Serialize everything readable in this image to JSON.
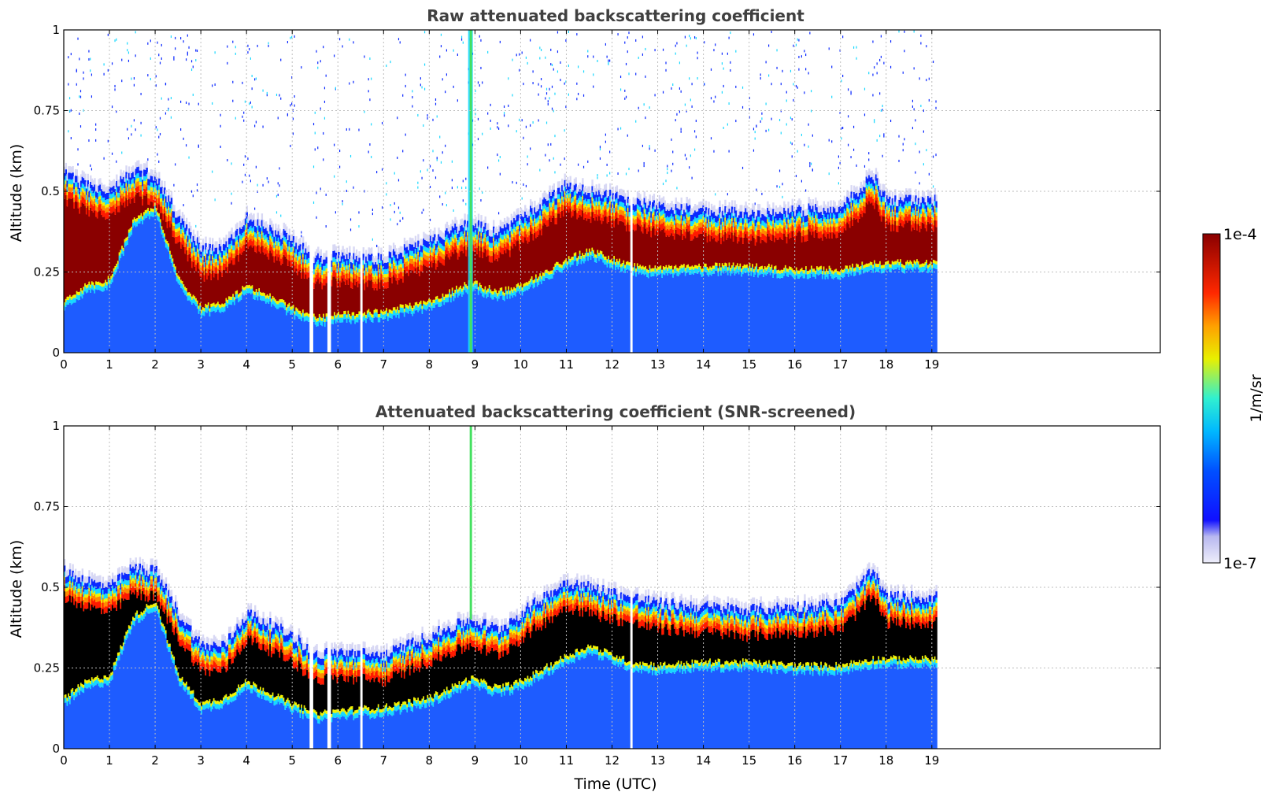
{
  "figure": {
    "colorbar": {
      "label": "1/m/sr",
      "max_label": "1e-4",
      "min_label": "1e-7",
      "scale": "log",
      "colormap": "jet-like (pale lavender → blue → cyan → yellow → red → dark red)"
    },
    "xlabel": "Time (UTC)"
  },
  "chart_data": [
    {
      "type": "heatmap",
      "title": "Raw attenuated backscattering coefficient",
      "xlabel": "",
      "ylabel": "Altitude (km)",
      "xlim": [
        0,
        24
      ],
      "ylim": [
        0,
        1
      ],
      "xticks": [
        "0",
        "1",
        "2",
        "3",
        "4",
        "5",
        "6",
        "7",
        "8",
        "9",
        "10",
        "11",
        "12",
        "13",
        "14",
        "15",
        "16",
        "17",
        "18",
        "19"
      ],
      "yticks": [
        "0",
        "0.25",
        "0.5",
        "0.75",
        "1"
      ],
      "ytick_values": [
        0,
        0.25,
        0.5,
        0.75,
        1
      ],
      "data_end_time": 19.1,
      "grid": true,
      "approx_layer": {
        "time": [
          0,
          0.5,
          1,
          1.5,
          2,
          2.5,
          3,
          3.5,
          4,
          5,
          5.5,
          6,
          7,
          8,
          8.9,
          9.5,
          10,
          11,
          11.5,
          12.4,
          13,
          14,
          15,
          16,
          17,
          17.7,
          18,
          19.1
        ],
        "top": [
          0.55,
          0.52,
          0.5,
          0.56,
          0.55,
          0.42,
          0.32,
          0.32,
          0.42,
          0.35,
          0.29,
          0.3,
          0.29,
          0.35,
          0.4,
          0.37,
          0.42,
          0.52,
          0.5,
          0.47,
          0.45,
          0.44,
          0.43,
          0.44,
          0.45,
          0.55,
          0.47,
          0.47
        ],
        "bottom": [
          0.15,
          0.2,
          0.22,
          0.4,
          0.45,
          0.22,
          0.13,
          0.15,
          0.2,
          0.13,
          0.1,
          0.11,
          0.12,
          0.15,
          0.21,
          0.18,
          0.2,
          0.28,
          0.31,
          0.26,
          0.25,
          0.26,
          0.26,
          0.25,
          0.25,
          0.27,
          0.27,
          0.27
        ]
      },
      "gaps_time": [
        5.4,
        5.8,
        6.5,
        12.4
      ]
    },
    {
      "type": "heatmap",
      "title": "Attenuated backscattering coefficient (SNR-screened)",
      "xlabel": "Time (UTC)",
      "ylabel": "Altitude (km)",
      "xlim": [
        0,
        24
      ],
      "ylim": [
        0,
        1
      ],
      "xticks": [
        "0",
        "1",
        "2",
        "3",
        "4",
        "5",
        "6",
        "7",
        "8",
        "9",
        "10",
        "11",
        "12",
        "13",
        "14",
        "15",
        "16",
        "17",
        "18",
        "19"
      ],
      "yticks": [
        "0",
        "0.25",
        "0.5",
        "0.75",
        "1"
      ],
      "ytick_values": [
        0,
        0.25,
        0.5,
        0.75,
        1
      ],
      "data_end_time": 19.1,
      "grid": true,
      "approx_layer": {
        "time": [
          0,
          0.5,
          1,
          1.5,
          2,
          2.5,
          3,
          3.5,
          4,
          5,
          5.5,
          6,
          7,
          8,
          8.9,
          9.5,
          10,
          11,
          11.5,
          12.4,
          13,
          14,
          15,
          16,
          17,
          17.7,
          18,
          19.1
        ],
        "top": [
          0.55,
          0.52,
          0.5,
          0.56,
          0.55,
          0.42,
          0.32,
          0.32,
          0.42,
          0.35,
          0.29,
          0.3,
          0.29,
          0.35,
          0.4,
          0.37,
          0.42,
          0.52,
          0.5,
          0.47,
          0.45,
          0.44,
          0.43,
          0.44,
          0.45,
          0.55,
          0.47,
          0.47
        ],
        "bottom": [
          0.15,
          0.2,
          0.22,
          0.4,
          0.45,
          0.22,
          0.13,
          0.15,
          0.2,
          0.13,
          0.1,
          0.11,
          0.12,
          0.15,
          0.21,
          0.18,
          0.2,
          0.28,
          0.31,
          0.26,
          0.25,
          0.26,
          0.26,
          0.25,
          0.25,
          0.27,
          0.27,
          0.27
        ]
      },
      "gaps_time": [
        5.4,
        5.8,
        6.5,
        12.4
      ],
      "screened": true
    }
  ],
  "colors": {
    "lavender": "#d8d8f4",
    "blue": "#0a28ff",
    "mid_blue": "#1e5cff",
    "cyan": "#18d8ff",
    "yellow": "#f2f200",
    "orange": "#ff8a00",
    "red": "#ff1a00",
    "dark_red": "#8a0000",
    "black": "#000000",
    "title_gray": "#404040"
  }
}
